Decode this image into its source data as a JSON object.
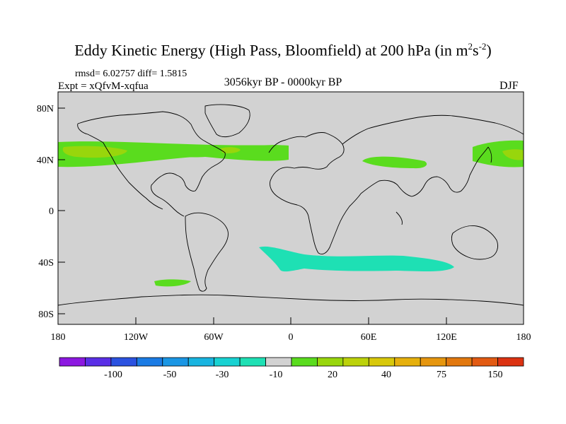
{
  "title": {
    "main": "Eddy Kinetic Energy (High Pass, Bloomfield) at 200 hPa (in m",
    "sup1": "2",
    "mid": "s",
    "sup2": "-2",
    "end": ")"
  },
  "stats": "rmsd= 6.02757 diff= 1.5815",
  "experiment": "Expt = xQfvM-xqfua",
  "period": "3056kyr BP - 0000kyr BP",
  "season": "DJF",
  "axes": {
    "y_ticks": [
      "80N",
      "40N",
      "0",
      "40S",
      "80S"
    ],
    "x_ticks": [
      "180",
      "120W",
      "60W",
      "0",
      "60E",
      "120E",
      "180"
    ]
  },
  "colorbar": {
    "colors": [
      "#8c18e0",
      "#5a2ee6",
      "#2b52e0",
      "#1a7be4",
      "#1a96e4",
      "#18b4e0",
      "#18d2d2",
      "#1ee0b4",
      "#d2d2d2",
      "#5adc1e",
      "#98d60c",
      "#bcd20a",
      "#d8c80a",
      "#e6b00c",
      "#e6960e",
      "#e2780e",
      "#e25a12",
      "#dc3212"
    ],
    "labels": [
      "-100",
      "-50",
      "-30",
      "-10",
      "20",
      "40",
      "75",
      "150"
    ]
  },
  "colors": {
    "ocean_land_fill": "#d2d2d2",
    "positive_green": "#5adc1e",
    "positive_yellowgreen": "#98d60c",
    "negative_cyan": "#1ee0b4"
  }
}
